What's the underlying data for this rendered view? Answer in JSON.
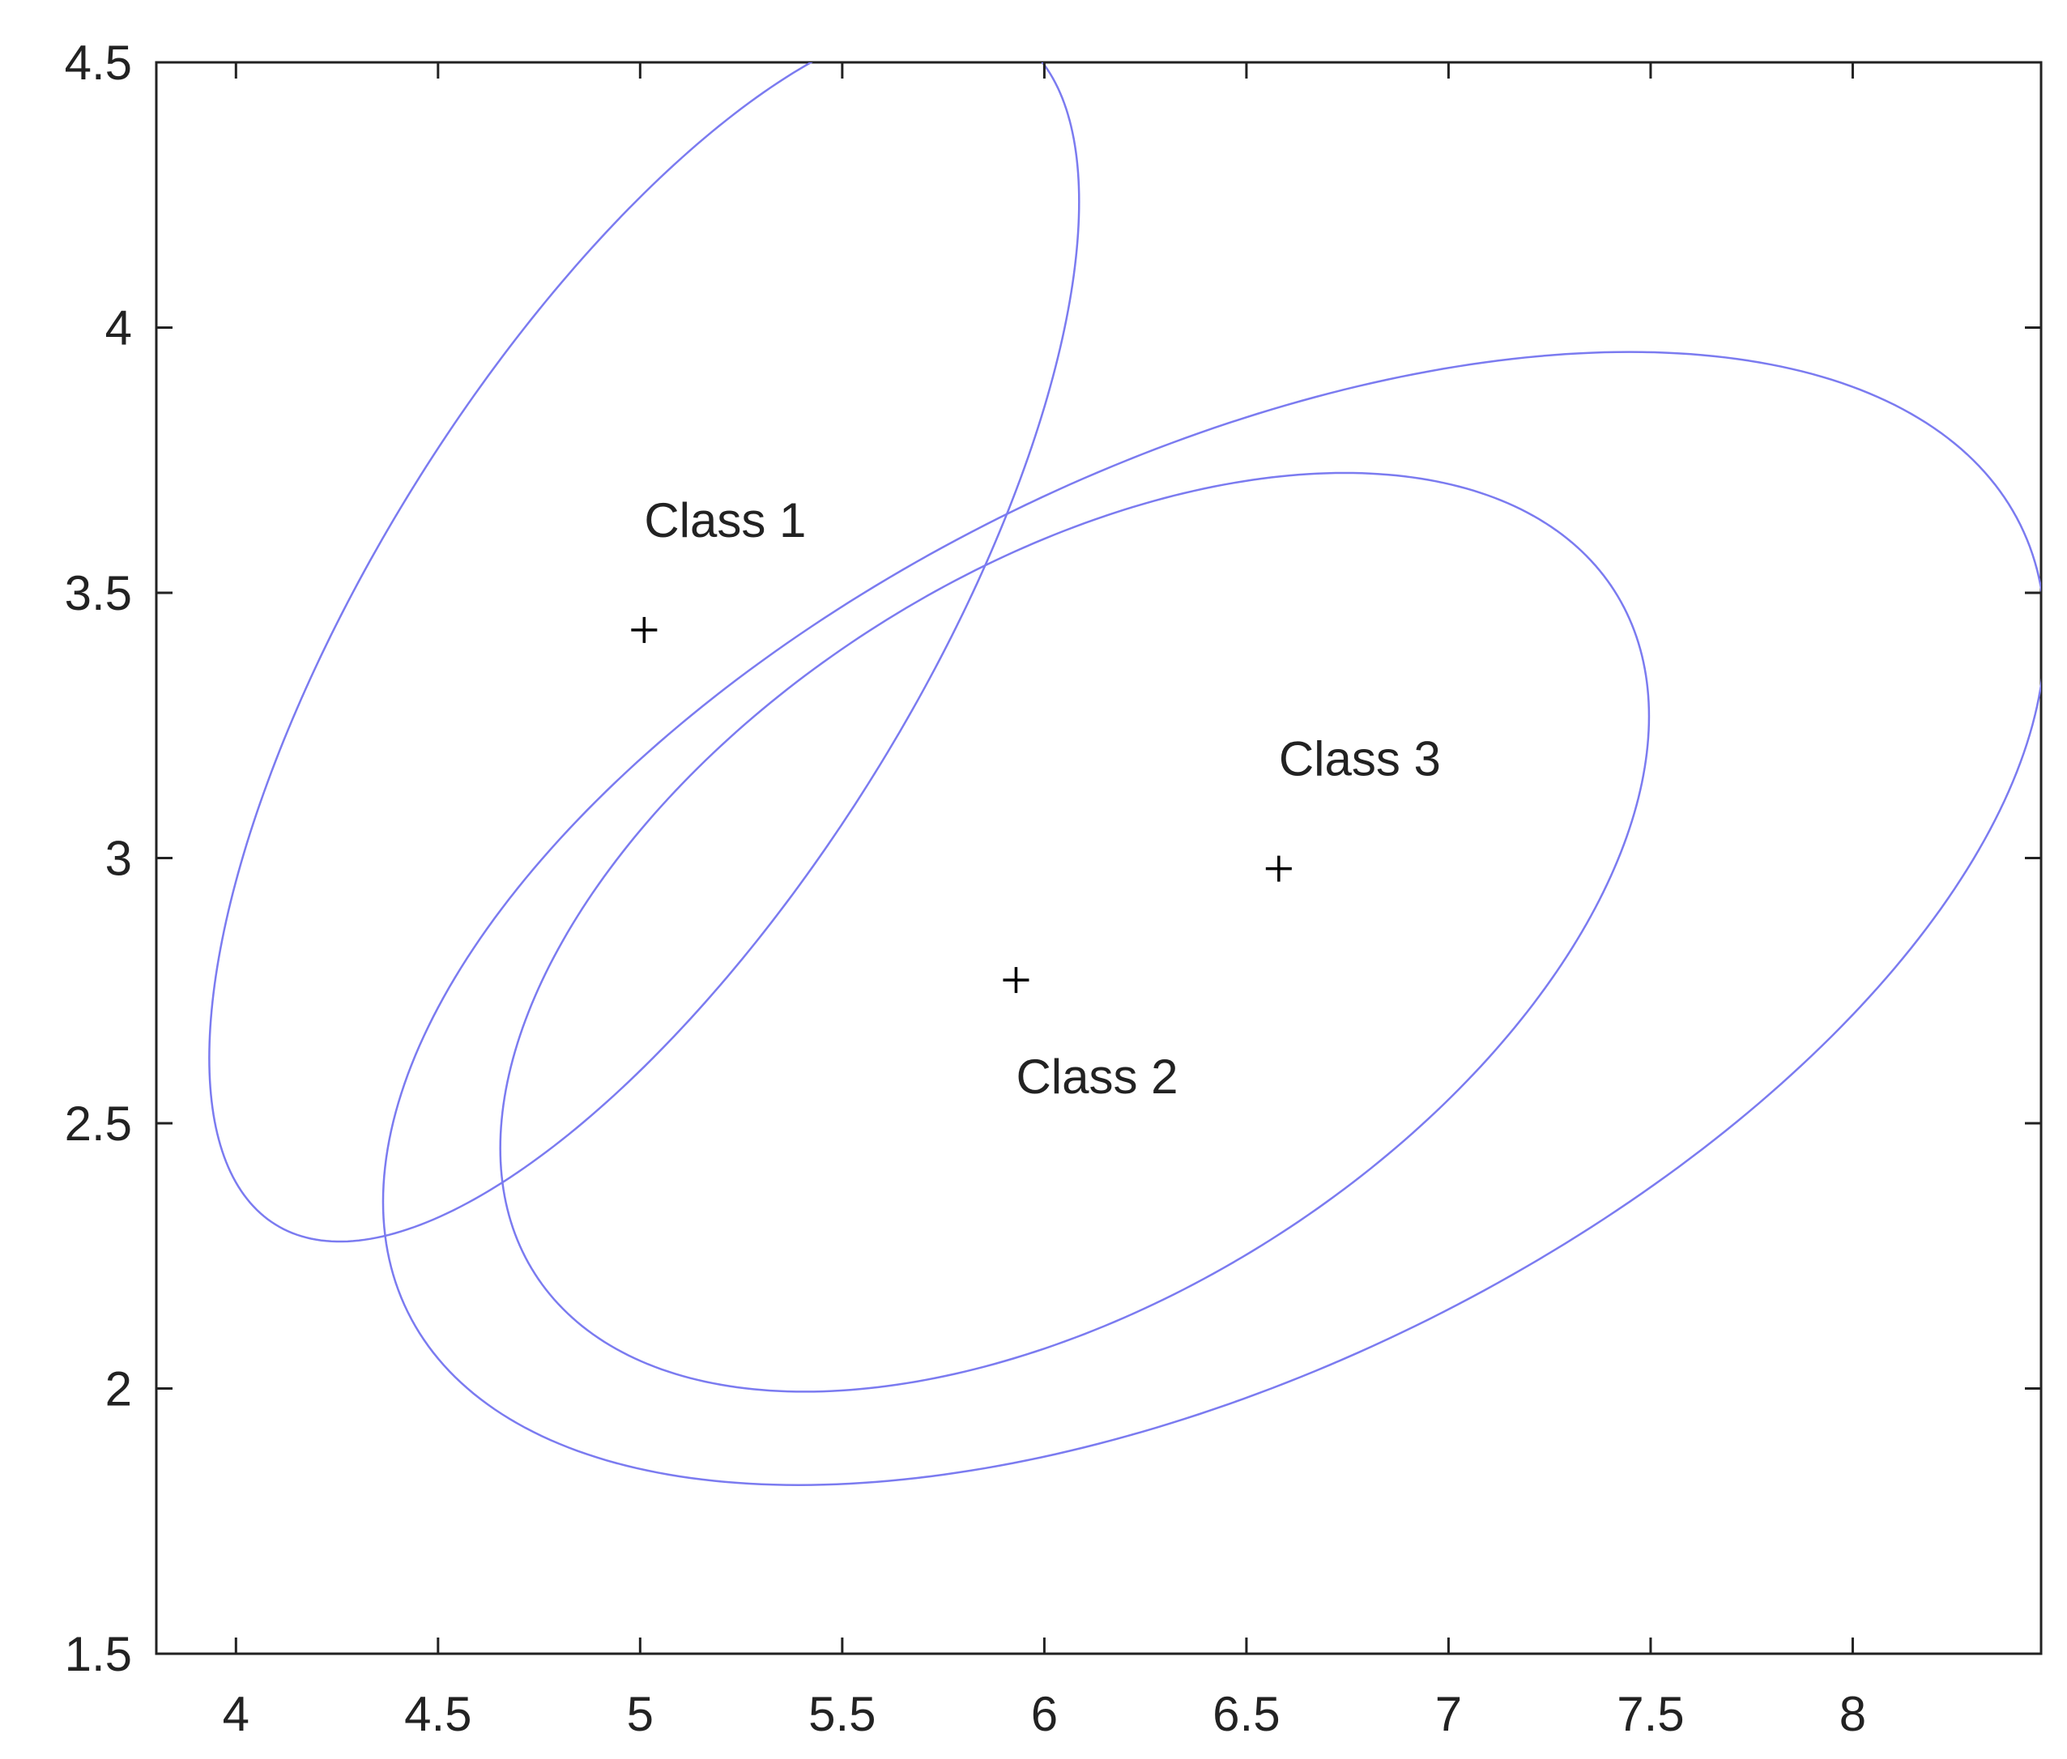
{
  "chart_data": {
    "type": "scatter",
    "xlim": [
      3.803,
      8.466
    ],
    "ylim": [
      1.5,
      4.5
    ],
    "xticks": [
      4,
      4.5,
      5,
      5.5,
      6,
      6.5,
      7,
      7.5,
      8
    ],
    "yticks": [
      1.5,
      2,
      2.5,
      3,
      3.5,
      4,
      4.5
    ],
    "marker_color": "#000000",
    "ellipse_color": "#7b7bf0",
    "series": [
      {
        "name": "Class 1",
        "x": [
          5.01
        ],
        "y": [
          3.43
        ],
        "ellipse": {
          "cx": 5.01,
          "cy": 3.43,
          "x_radius": 1.076,
          "y_radius": 1.153,
          "correlation": 0.7
        }
      },
      {
        "name": "Class 2",
        "x": [
          5.93
        ],
        "y": [
          2.77
        ],
        "ellipse": {
          "cx": 6.075,
          "cy": 2.86,
          "x_radius": 1.421,
          "y_radius": 0.866,
          "correlation": 0.47
        }
      },
      {
        "name": "Class 3",
        "x": [
          6.58
        ],
        "y": [
          2.98
        ],
        "ellipse": {
          "cx": 6.42,
          "cy": 2.886,
          "x_radius": 2.056,
          "y_radius": 1.068,
          "correlation": 0.5
        }
      }
    ]
  }
}
